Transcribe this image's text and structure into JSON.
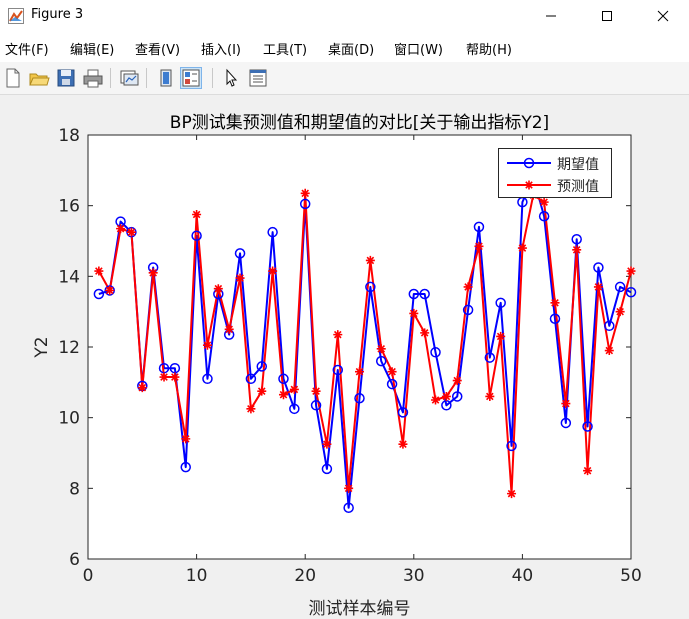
{
  "window": {
    "title": "Figure 3",
    "icon": "matlab-figure-icon",
    "buttons": [
      "minimize-icon",
      "maximize-icon",
      "close-icon"
    ]
  },
  "menu": {
    "items": [
      "文件(F)",
      "编辑(E)",
      "查看(V)",
      "插入(I)",
      "工具(T)",
      "桌面(D)",
      "窗口(W)",
      "帮助(H)"
    ]
  },
  "toolbar": {
    "tools": [
      "new-figure-icon",
      "open-file-icon",
      "save-icon",
      "print-icon",
      "link-plot-icon",
      "hide-plot-tools-icon",
      "show-plot-tools-icon",
      "edit-plot-arrow-icon",
      "property-inspector-icon"
    ]
  },
  "colors": {
    "expected": "#0000ff",
    "predicted": "#ff0000",
    "axis": "#262626"
  },
  "chart_data": {
    "type": "line",
    "title": "BP测试集预测值和期望值的对比[关于输出指标Y2]",
    "xlabel": "测试样本编号",
    "ylabel": "Y2",
    "xlim": [
      0,
      50
    ],
    "ylim": [
      6,
      18
    ],
    "xticks": [
      0,
      10,
      20,
      30,
      40,
      50
    ],
    "yticks": [
      6,
      8,
      10,
      12,
      14,
      16,
      18
    ],
    "grid": false,
    "legend_position": "top-right",
    "x": [
      1,
      2,
      3,
      4,
      5,
      6,
      7,
      8,
      9,
      10,
      11,
      12,
      13,
      14,
      15,
      16,
      17,
      18,
      19,
      20,
      21,
      22,
      23,
      24,
      25,
      26,
      27,
      28,
      29,
      30,
      31,
      32,
      33,
      34,
      35,
      36,
      37,
      38,
      39,
      40,
      41,
      42,
      43,
      44,
      45,
      46,
      47,
      48,
      49,
      50
    ],
    "series": [
      {
        "name": "期望值",
        "color": "#0000ff",
        "marker": "circle",
        "values": [
          13.5,
          13.6,
          15.55,
          15.25,
          10.9,
          14.25,
          11.4,
          11.4,
          8.6,
          15.15,
          11.1,
          13.5,
          12.35,
          14.65,
          11.1,
          11.45,
          15.25,
          11.1,
          10.25,
          16.05,
          10.35,
          8.55,
          11.35,
          7.45,
          10.55,
          13.7,
          11.6,
          10.95,
          10.15,
          13.5,
          13.5,
          11.85,
          10.35,
          10.6,
          13.05,
          15.4,
          11.7,
          13.25,
          9.2,
          16.1,
          16.8,
          15.7,
          12.8,
          9.85,
          15.05,
          9.75,
          14.25,
          12.6,
          13.7,
          13.55
        ]
      },
      {
        "name": "预测值",
        "color": "#ff0000",
        "marker": "asterisk",
        "values": [
          14.15,
          13.6,
          15.35,
          15.25,
          10.85,
          14.1,
          11.15,
          11.15,
          9.4,
          15.75,
          12.05,
          13.65,
          12.5,
          13.95,
          10.25,
          10.75,
          14.15,
          10.65,
          10.8,
          16.35,
          10.75,
          9.25,
          12.35,
          8.0,
          11.3,
          14.45,
          11.95,
          11.3,
          9.25,
          12.95,
          12.4,
          10.5,
          10.6,
          11.05,
          13.7,
          14.85,
          10.6,
          12.3,
          7.85,
          14.8,
          16.3,
          16.1,
          13.25,
          10.4,
          14.75,
          8.5,
          13.7,
          11.9,
          13.0,
          14.15
        ]
      }
    ]
  }
}
